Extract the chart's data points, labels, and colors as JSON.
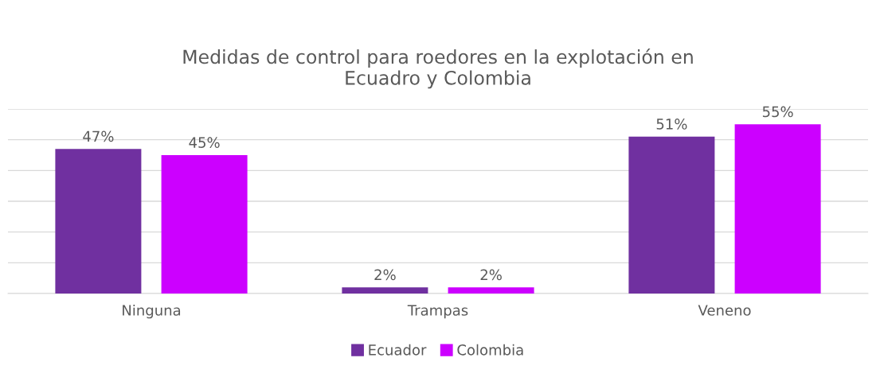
{
  "chart_data": {
    "type": "bar",
    "title": "Medidas de control para roedores en la explotación en\nEcuadro y Colombia",
    "categories": [
      "Ninguna",
      "Trampas",
      "Veneno"
    ],
    "series": [
      {
        "name": "Ecuador",
        "color": "#7030a0",
        "values": [
          47,
          2,
          51
        ],
        "value_labels": [
          "47%",
          "2%",
          "51%"
        ]
      },
      {
        "name": "Colombia",
        "color": "#cc00ff",
        "values": [
          45,
          2,
          55
        ],
        "value_labels": [
          "45%",
          "2%",
          "55%"
        ]
      }
    ],
    "ylim": [
      0,
      60
    ],
    "yticks": [
      {
        "value": 0,
        "label": null
      },
      {
        "value": 10,
        "label": null
      },
      {
        "value": 20,
        "label": null
      },
      {
        "value": 30,
        "label": null
      },
      {
        "value": 40,
        "label": null
      },
      {
        "value": 50,
        "label": null
      },
      {
        "value": 60,
        "label": null
      }
    ],
    "tick_labels": "x",
    "grid": "y",
    "legend": "bottom"
  }
}
